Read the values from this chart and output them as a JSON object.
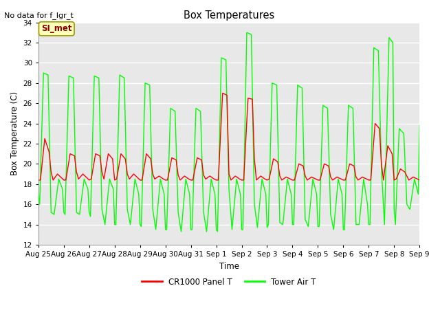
{
  "title": "Box Temperatures",
  "ylabel": "Box Temperature (C)",
  "xlabel": "Time",
  "no_data_text": "No data for f_lgr_t",
  "annotation_text": "SI_met",
  "ylim": [
    12,
    34
  ],
  "line1_color": "#ff0000",
  "line2_color": "#00ff00",
  "legend_line1": "CR1000 Panel T",
  "legend_line2": "Tower Air T",
  "x_tick_labels": [
    "Aug 25",
    "Aug 26",
    "Aug 27",
    "Aug 28",
    "Aug 29",
    "Aug 30",
    "Aug 31",
    "Sep 1",
    "Sep 2",
    "Sep 3",
    "Sep 4",
    "Sep 5",
    "Sep 6",
    "Sep 7",
    "Sep 8",
    "Sep 9"
  ],
  "panel_t_x": [
    0.0,
    0.08,
    0.25,
    0.42,
    0.5,
    0.58,
    0.75,
    0.92,
    1.0,
    1.08,
    1.25,
    1.42,
    1.5,
    1.58,
    1.75,
    1.92,
    2.0,
    2.08,
    2.25,
    2.42,
    2.5,
    2.58,
    2.75,
    2.92,
    3.0,
    3.08,
    3.25,
    3.42,
    3.5,
    3.58,
    3.75,
    3.92,
    4.0,
    4.08,
    4.25,
    4.42,
    4.5,
    4.58,
    4.75,
    4.92,
    5.0,
    5.08,
    5.25,
    5.42,
    5.5,
    5.58,
    5.75,
    5.92,
    6.0,
    6.08,
    6.25,
    6.42,
    6.5,
    6.58,
    6.75,
    6.92,
    7.0,
    7.08,
    7.25,
    7.42,
    7.5,
    7.58,
    7.75,
    7.92,
    8.0,
    8.08,
    8.25,
    8.42,
    8.5,
    8.58,
    8.75,
    8.92,
    9.0,
    9.08,
    9.25,
    9.42,
    9.5,
    9.58,
    9.75,
    9.92,
    10.0,
    10.08,
    10.25,
    10.42,
    10.5,
    10.58,
    10.75,
    10.92,
    11.0,
    11.08,
    11.25,
    11.42,
    11.5,
    11.58,
    11.75,
    11.92,
    12.0,
    12.08,
    12.25,
    12.42,
    12.5,
    12.58,
    12.75,
    12.92,
    13.0,
    13.08,
    13.25,
    13.42,
    13.5,
    13.58,
    13.75,
    13.92,
    14.0,
    14.08,
    14.25,
    14.42,
    14.5,
    14.58,
    14.75,
    14.92,
    15.0
  ],
  "panel_t_y": [
    18.4,
    18.4,
    22.5,
    21.2,
    19.2,
    18.4,
    19.0,
    18.6,
    18.4,
    18.4,
    21.0,
    20.8,
    19.2,
    18.5,
    19.0,
    18.6,
    18.4,
    18.5,
    21.0,
    20.8,
    19.2,
    18.5,
    21.0,
    20.5,
    18.4,
    18.5,
    21.0,
    20.5,
    19.0,
    18.5,
    19.0,
    18.6,
    18.4,
    18.4,
    21.0,
    20.5,
    19.0,
    18.5,
    18.8,
    18.5,
    18.4,
    18.4,
    20.6,
    20.4,
    18.9,
    18.4,
    18.8,
    18.5,
    18.4,
    18.4,
    20.6,
    20.4,
    18.9,
    18.5,
    18.8,
    18.5,
    18.4,
    18.4,
    27.0,
    26.8,
    19.0,
    18.4,
    18.8,
    18.5,
    18.4,
    18.4,
    26.5,
    26.4,
    20.5,
    18.4,
    18.8,
    18.5,
    18.4,
    18.5,
    20.5,
    20.2,
    18.8,
    18.4,
    18.7,
    18.5,
    18.4,
    18.4,
    20.0,
    19.8,
    18.8,
    18.4,
    18.7,
    18.5,
    18.4,
    18.4,
    20.0,
    19.8,
    18.7,
    18.4,
    18.7,
    18.5,
    18.4,
    18.4,
    20.0,
    19.8,
    18.7,
    18.4,
    18.7,
    18.5,
    18.4,
    18.4,
    24.0,
    23.5,
    20.0,
    18.4,
    21.8,
    21.0,
    18.4,
    18.5,
    19.5,
    19.2,
    18.8,
    18.4,
    18.7,
    18.5,
    18.4
  ],
  "tower_t_x": [
    0.0,
    0.05,
    0.2,
    0.38,
    0.5,
    0.62,
    0.8,
    0.95,
    1.0,
    1.05,
    1.2,
    1.38,
    1.5,
    1.62,
    1.8,
    1.95,
    2.0,
    2.05,
    2.2,
    2.38,
    2.5,
    2.62,
    2.8,
    2.95,
    3.0,
    3.05,
    3.2,
    3.38,
    3.5,
    3.62,
    3.8,
    3.95,
    4.0,
    4.05,
    4.2,
    4.38,
    4.5,
    4.62,
    4.8,
    4.95,
    5.0,
    5.05,
    5.2,
    5.38,
    5.5,
    5.62,
    5.8,
    5.95,
    6.0,
    6.05,
    6.2,
    6.38,
    6.5,
    6.62,
    6.8,
    6.95,
    7.0,
    7.05,
    7.2,
    7.38,
    7.5,
    7.62,
    7.8,
    7.95,
    8.0,
    8.05,
    8.2,
    8.38,
    8.5,
    8.62,
    8.8,
    8.95,
    9.0,
    9.05,
    9.2,
    9.38,
    9.5,
    9.62,
    9.8,
    9.95,
    10.0,
    10.05,
    10.2,
    10.38,
    10.5,
    10.62,
    10.8,
    10.95,
    11.0,
    11.05,
    11.2,
    11.38,
    11.5,
    11.62,
    11.8,
    11.95,
    12.0,
    12.05,
    12.2,
    12.38,
    12.5,
    12.62,
    12.8,
    12.95,
    13.0,
    13.05,
    13.2,
    13.38,
    13.5,
    13.62,
    13.8,
    13.95,
    14.0,
    14.05,
    14.2,
    14.38,
    14.5,
    14.62,
    14.8,
    14.95,
    15.0
  ],
  "tower_t_y": [
    17.0,
    16.0,
    29.0,
    28.8,
    15.2,
    15.0,
    18.5,
    17.5,
    15.2,
    15.0,
    28.7,
    28.5,
    15.2,
    15.0,
    18.5,
    17.5,
    15.2,
    14.8,
    28.7,
    28.5,
    15.5,
    14.0,
    18.5,
    17.5,
    14.0,
    14.0,
    28.8,
    28.5,
    15.5,
    14.0,
    18.5,
    17.0,
    14.0,
    13.8,
    28.0,
    27.8,
    15.5,
    13.5,
    18.5,
    17.0,
    13.5,
    13.5,
    25.5,
    25.2,
    15.2,
    13.3,
    18.5,
    17.0,
    13.5,
    13.5,
    25.5,
    25.2,
    15.2,
    13.3,
    18.5,
    17.0,
    13.5,
    13.3,
    30.5,
    30.3,
    17.5,
    13.5,
    18.5,
    17.0,
    13.5,
    13.5,
    33.0,
    32.8,
    16.0,
    13.7,
    18.5,
    17.0,
    13.7,
    14.0,
    28.0,
    27.8,
    14.2,
    14.0,
    18.5,
    17.0,
    14.0,
    14.0,
    27.8,
    27.5,
    14.5,
    13.8,
    18.5,
    17.0,
    13.8,
    13.8,
    25.8,
    25.5,
    15.0,
    13.5,
    18.5,
    17.0,
    13.5,
    13.5,
    25.8,
    25.5,
    14.0,
    14.0,
    18.5,
    16.0,
    14.0,
    14.0,
    31.5,
    31.2,
    19.5,
    14.0,
    32.5,
    32.0,
    15.5,
    14.0,
    23.5,
    23.0,
    16.0,
    15.5,
    18.5,
    17.0,
    23.8
  ]
}
